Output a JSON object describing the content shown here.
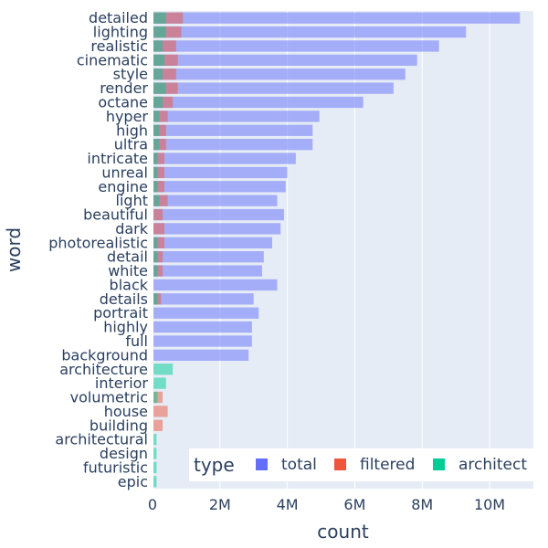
{
  "chart_data": {
    "type": "bar",
    "orientation": "horizontal",
    "barmode": "overlay",
    "title": "",
    "xlabel": "count",
    "ylabel": "word",
    "xlim": [
      0,
      11300000
    ],
    "x_ticks": [
      {
        "value": 0,
        "label": "0"
      },
      {
        "value": 2000000,
        "label": "2M"
      },
      {
        "value": 4000000,
        "label": "4M"
      },
      {
        "value": 6000000,
        "label": "6M"
      },
      {
        "value": 8000000,
        "label": "8M"
      },
      {
        "value": 10000000,
        "label": "10M"
      }
    ],
    "grid": true,
    "legend": {
      "title": "type",
      "position": "bottom-right",
      "orientation": "horizontal"
    },
    "categories": [
      "detailed",
      "lighting",
      "realistic",
      "cinematic",
      "style",
      "render",
      "octane",
      "hyper",
      "high",
      "ultra",
      "intricate",
      "unreal",
      "engine",
      "light",
      "beautiful",
      "dark",
      "photorealistic",
      "detail",
      "white",
      "black",
      "details",
      "portrait",
      "highly",
      "full",
      "background",
      "architecture",
      "interior",
      "volumetric",
      "house",
      "building",
      "architectural",
      "design",
      "futuristic",
      "epic"
    ],
    "series": [
      {
        "name": "total",
        "color": "#636efa",
        "opacity": 0.5,
        "values": [
          10900000,
          9300000,
          8500000,
          7850000,
          7500000,
          7150000,
          6250000,
          4950000,
          4750000,
          4750000,
          4250000,
          4000000,
          3950000,
          3700000,
          3900000,
          3800000,
          3550000,
          3300000,
          3250000,
          3700000,
          3000000,
          3150000,
          2950000,
          2950000,
          2850000,
          0,
          0,
          0,
          0,
          0,
          0,
          0,
          0,
          0
        ]
      },
      {
        "name": "filtered",
        "color": "#ef553b",
        "opacity": 0.5,
        "values": [
          900000,
          850000,
          700000,
          750000,
          700000,
          750000,
          600000,
          450000,
          400000,
          400000,
          350000,
          350000,
          350000,
          450000,
          300000,
          350000,
          350000,
          300000,
          300000,
          0,
          250000,
          0,
          0,
          0,
          0,
          0,
          0,
          300000,
          450000,
          300000,
          0,
          0,
          0,
          0
        ]
      },
      {
        "name": "architect",
        "color": "#00cc96",
        "opacity": 0.5,
        "values": [
          400000,
          400000,
          300000,
          350000,
          300000,
          400000,
          300000,
          200000,
          200000,
          200000,
          150000,
          150000,
          150000,
          200000,
          0,
          0,
          150000,
          150000,
          150000,
          0,
          150000,
          0,
          0,
          0,
          0,
          600000,
          400000,
          150000,
          0,
          0,
          120000,
          120000,
          120000,
          120000
        ]
      }
    ]
  }
}
